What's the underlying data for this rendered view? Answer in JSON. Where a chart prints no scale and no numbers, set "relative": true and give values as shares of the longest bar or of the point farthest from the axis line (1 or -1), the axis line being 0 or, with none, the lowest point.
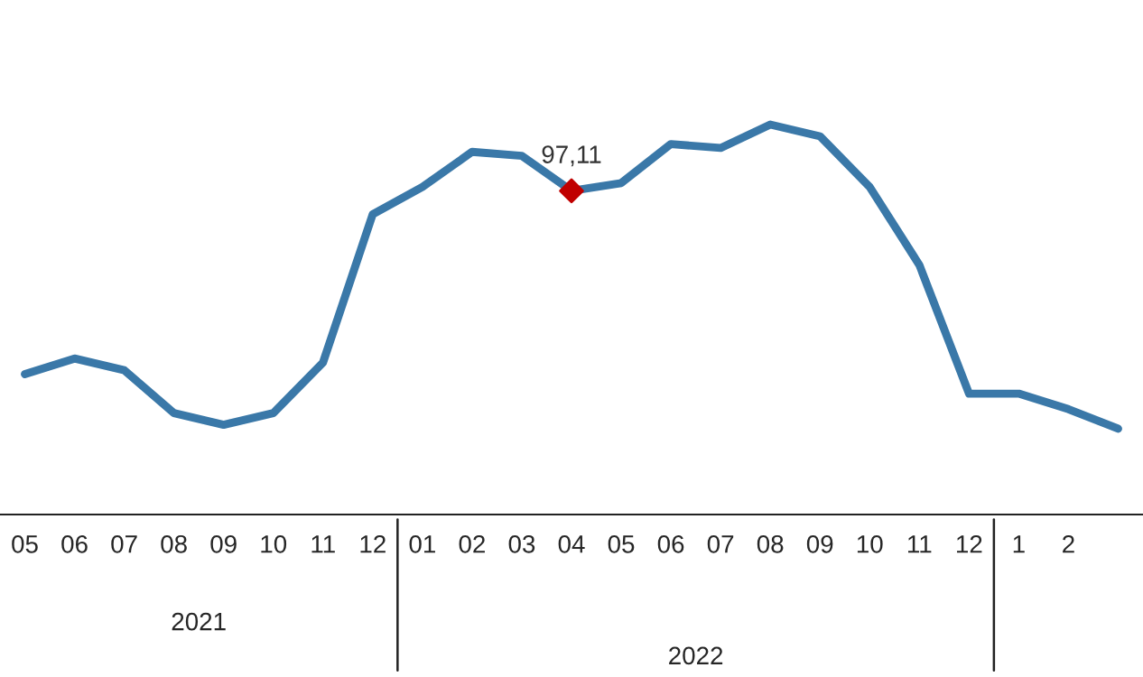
{
  "chart_data": {
    "type": "line",
    "relative": true,
    "categories": [
      "05",
      "06",
      "07",
      "08",
      "09",
      "10",
      "11",
      "12",
      "01",
      "02",
      "03",
      "04",
      "05",
      "06",
      "07",
      "08",
      "09",
      "10",
      "11",
      "12",
      "1",
      "2",
      null
    ],
    "series": [
      {
        "color": "#3a78a8",
        "values": [
          0.36,
          0.4,
          0.37,
          0.26,
          0.23,
          0.26,
          0.39,
          0.77,
          0.84,
          0.93,
          0.92,
          0.83,
          0.85,
          0.95,
          0.94,
          1,
          0.97,
          0.84,
          0.64,
          0.31,
          0.31,
          0.27,
          0.22
        ]
      },
      {
        "type": "scatter",
        "color": "#c00000",
        "marker": "diamond",
        "values": [
          null,
          null,
          null,
          null,
          null,
          null,
          null,
          null,
          null,
          null,
          null,
          0.83,
          null,
          null,
          null,
          null,
          null,
          null,
          null,
          null,
          null,
          null,
          null
        ]
      }
    ],
    "annotations": [
      {
        "text": "97,11",
        "x": "04",
        "y": 0.83
      },
      "2021",
      "2022"
    ]
  }
}
